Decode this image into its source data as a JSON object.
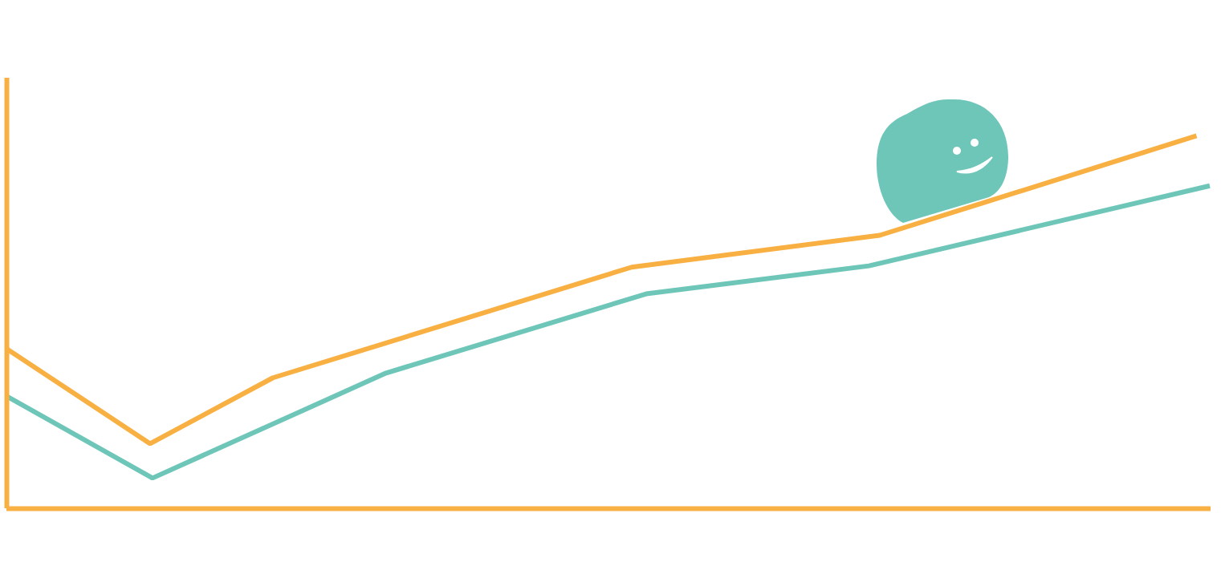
{
  "chart_data": {
    "type": "line",
    "tick_labels": false,
    "grid": false,
    "xlim": [
      0,
      100
    ],
    "ylim": [
      0,
      100
    ],
    "series": [
      {
        "color": "#f9b042",
        "x": [
          0,
          11.9,
          22.1,
          51.9,
          72.5,
          98.8
        ],
        "values": [
          37.1,
          15.1,
          30.4,
          56.1,
          63.5,
          86.6
        ]
      },
      {
        "color": "#6ec6b9",
        "x": [
          0,
          12.1,
          31.5,
          53.1,
          71.6,
          99.9
        ],
        "values": [
          26.1,
          7.1,
          31.5,
          49.9,
          56.4,
          75.0
        ]
      }
    ]
  }
}
